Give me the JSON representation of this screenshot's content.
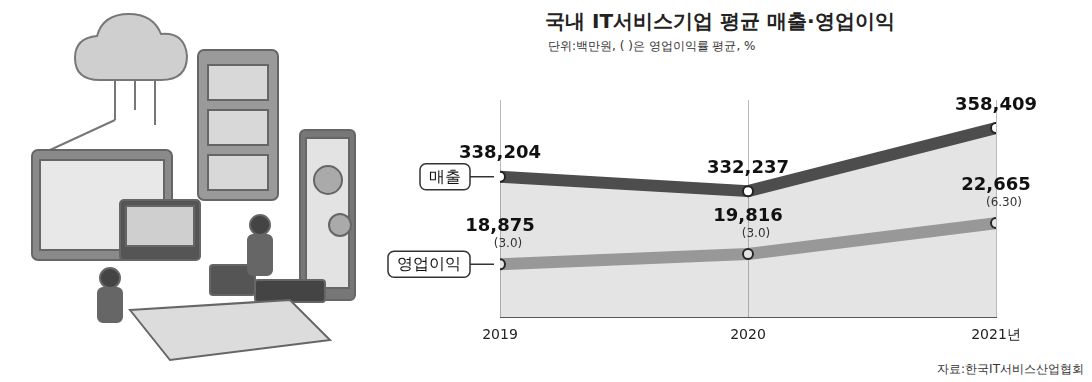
{
  "chart_data": {
    "type": "line",
    "title": "국내 IT서비스기업 평균 매출·영업이익",
    "subtitle": "단위:백만원, ( )은 영업이익률 평균, %",
    "source": "자료:한국IT서비스산업협회",
    "categories": [
      "2019",
      "2020",
      "2021년"
    ],
    "series": [
      {
        "name": "매출",
        "color": "#4d4d4d",
        "values": [
          338204,
          332237,
          358409
        ],
        "value_labels": [
          "338,204",
          "332,237",
          "358,409"
        ]
      },
      {
        "name": "영업이익",
        "color": "#a6a6a6",
        "axis": "y2",
        "values": [
          18875,
          19816,
          22665
        ],
        "value_labels": [
          "18,875",
          "19,816",
          "22,665"
        ],
        "operating_margin": [
          3.0,
          3.0,
          6.3
        ],
        "operating_margin_labels": [
          "(3.0)",
          "(3.0)",
          "(6.30)"
        ]
      }
    ],
    "ylim": [
      280000,
      370000
    ],
    "y2lim": [
      14000,
      34000
    ],
    "grid": true,
    "legend": "left",
    "data_labels": true,
    "tick_labels": "x",
    "marker": "circle"
  }
}
